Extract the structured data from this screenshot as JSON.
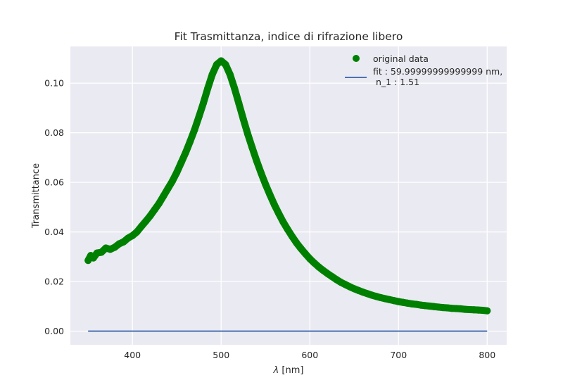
{
  "chart_data": {
    "type": "scatter",
    "title": "Fit Trasmittanza, indice di rifrazione libero",
    "xlabel_symbol": "λ",
    "xlabel_unit": " [nm]",
    "ylabel": "Transmittance",
    "xlim": [
      330,
      822
    ],
    "ylim": [
      -0.0055,
      0.1148
    ],
    "xticks": [
      400,
      500,
      600,
      700,
      800
    ],
    "yticks": [
      0.0,
      0.02,
      0.04,
      0.06,
      0.08,
      0.1
    ],
    "xtick_labels": [
      "400",
      "500",
      "600",
      "700",
      "800"
    ],
    "ytick_labels": [
      "0.00",
      "0.02",
      "0.04",
      "0.06",
      "0.08",
      "0.10"
    ],
    "grid": true,
    "legend_position": "top-right",
    "colors": {
      "background": "#eaeaf2",
      "grid": "#ffffff",
      "data": "#008000",
      "fit": "#4c72b0"
    },
    "series": [
      {
        "name": "original data",
        "kind": "scatter",
        "x": [
          350,
          353,
          356,
          360,
          365,
          370,
          375,
          380,
          385,
          390,
          395,
          400,
          405,
          410,
          415,
          420,
          425,
          430,
          435,
          440,
          445,
          450,
          455,
          460,
          465,
          470,
          475,
          480,
          485,
          490,
          495,
          500,
          505,
          510,
          515,
          520,
          525,
          530,
          535,
          540,
          545,
          550,
          555,
          560,
          565,
          570,
          575,
          580,
          585,
          590,
          595,
          600,
          605,
          610,
          615,
          620,
          625,
          630,
          635,
          640,
          645,
          650,
          655,
          660,
          665,
          670,
          675,
          680,
          685,
          690,
          695,
          700,
          705,
          710,
          715,
          720,
          725,
          730,
          735,
          740,
          745,
          750,
          755,
          760,
          765,
          770,
          775,
          780,
          785,
          790,
          795,
          800
        ],
        "y": [
          0.0285,
          0.0305,
          0.0295,
          0.0315,
          0.0318,
          0.0335,
          0.033,
          0.0338,
          0.0352,
          0.036,
          0.0375,
          0.0385,
          0.04,
          0.0422,
          0.0443,
          0.0465,
          0.049,
          0.0515,
          0.0545,
          0.0575,
          0.0605,
          0.064,
          0.068,
          0.072,
          0.0765,
          0.0812,
          0.0865,
          0.092,
          0.098,
          0.1035,
          0.1075,
          0.109,
          0.1075,
          0.1035,
          0.098,
          0.0918,
          0.0855,
          0.0795,
          0.074,
          0.0687,
          0.0638,
          0.0592,
          0.055,
          0.051,
          0.0474,
          0.044,
          0.041,
          0.0382,
          0.0356,
          0.0333,
          0.0312,
          0.0292,
          0.0275,
          0.0259,
          0.0245,
          0.0232,
          0.022,
          0.0208,
          0.0197,
          0.0188,
          0.0179,
          0.0171,
          0.0164,
          0.0157,
          0.0151,
          0.0145,
          0.014,
          0.0135,
          0.0131,
          0.0127,
          0.0123,
          0.0119,
          0.0116,
          0.0113,
          0.011,
          0.0108,
          0.0105,
          0.0103,
          0.0101,
          0.0099,
          0.0097,
          0.0095,
          0.0094,
          0.0092,
          0.0091,
          0.009,
          0.0088,
          0.0087,
          0.0086,
          0.0085,
          0.0084,
          0.0082
        ]
      },
      {
        "name": "fit : 59.99999999999999 nm,\n n_1 : 1.51",
        "name_lines": [
          "fit : 59.99999999999999 nm,",
          " n_1 : 1.51"
        ],
        "kind": "line",
        "x": [
          350,
          800
        ],
        "y": [
          0.0,
          0.0
        ]
      }
    ]
  }
}
